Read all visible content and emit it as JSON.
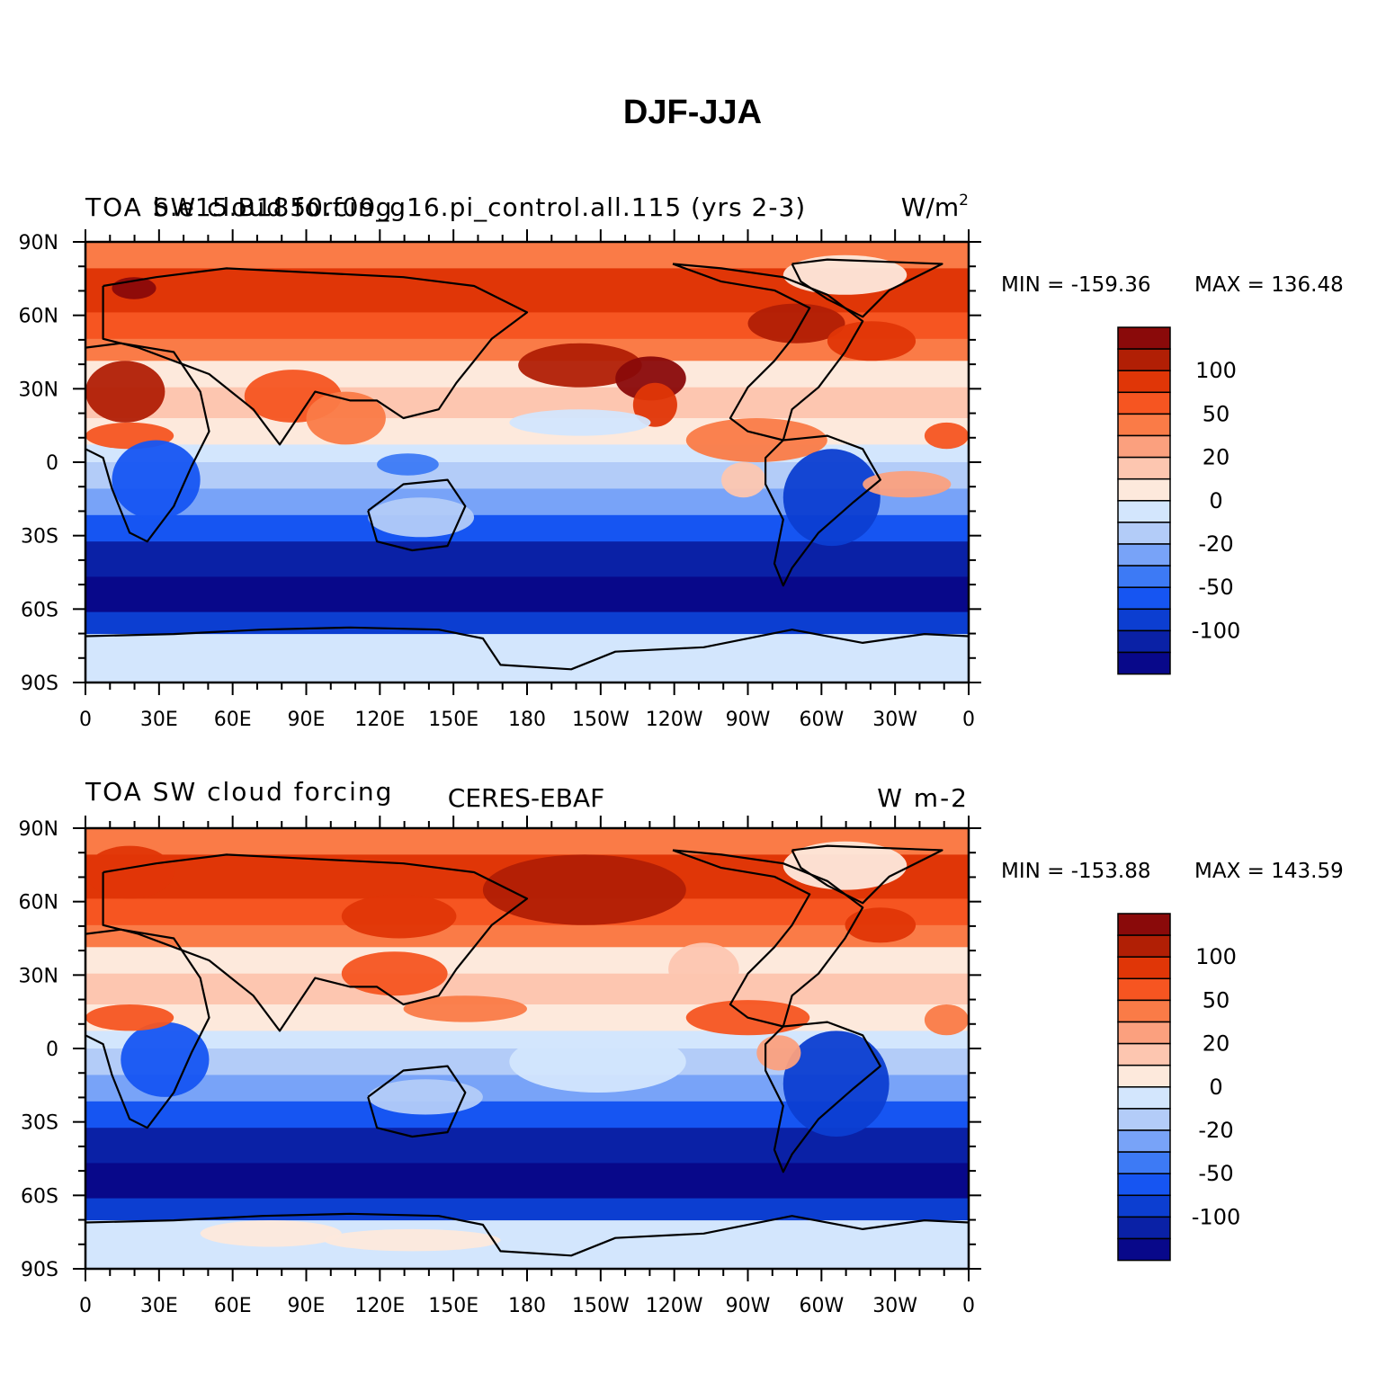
{
  "figure": {
    "title": "DJF-JJA"
  },
  "colors": [
    "#08088a",
    "#0a21a6",
    "#0c3ed1",
    "#1655f2",
    "#3d7af5",
    "#78a3f8",
    "#b3ccf8",
    "#d3e6fd",
    "#fde9dc",
    "#fdc6b0",
    "#fba07e",
    "#fa7b47",
    "#f65521",
    "#e03607",
    "#b11f05",
    "#8a0a0a"
  ],
  "colorbar_labels": [
    "-100",
    "-50",
    "-20",
    "0",
    "20",
    "50",
    "100"
  ],
  "axes": {
    "x_ticks": [
      "0",
      "30E",
      "60E",
      "90E",
      "120E",
      "150E",
      "180",
      "150W",
      "120W",
      "90W",
      "60W",
      "30W",
      "0"
    ],
    "y_ticks": [
      "90N",
      "60N",
      "30N",
      "0",
      "30S",
      "60S",
      "90S"
    ]
  },
  "panels": [
    {
      "left_title": "TOA SW cloud forcing",
      "center_title": "b.e15.B1850.f09_g16.pi_control.all.115 (yrs 2-3)",
      "right_title": "W/m",
      "right_title_sup": "2",
      "min_label": "MIN = -159.36",
      "max_label": "MAX = 136.48"
    },
    {
      "left_title": "TOA SW cloud forcing",
      "center_title": "CERES-EBAF",
      "right_title": "W m-2",
      "right_title_sup": "",
      "min_label": "MIN = -153.88",
      "max_label": "MAX = 143.59"
    }
  ]
}
